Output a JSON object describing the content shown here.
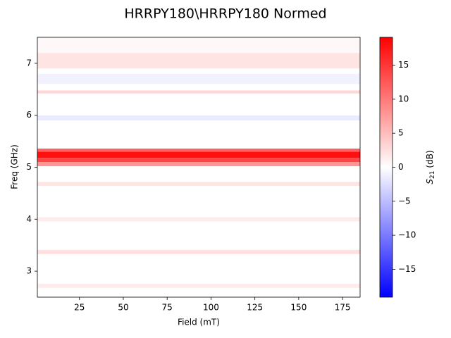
{
  "chart_data": {
    "type": "heatmap",
    "title": "HRRPY180\\HRRPY180 Normed",
    "xlabel": "Field (mT)",
    "ylabel": "Freq (GHz)",
    "xlim": [
      1,
      185
    ],
    "xticks": [
      25,
      50,
      75,
      100,
      125,
      150,
      175
    ],
    "ylim": [
      2.5,
      7.5
    ],
    "yticks": [
      3,
      4,
      5,
      6,
      7
    ],
    "y_bins": [
      2.5,
      2.68,
      2.76,
      3.33,
      3.41,
      3.96,
      4.04,
      4.64,
      4.72,
      5.02,
      5.1,
      5.18,
      5.3,
      5.36,
      5.9,
      6.0,
      6.42,
      6.48,
      6.6,
      6.8,
      6.9,
      7.2,
      7.5
    ],
    "values": [
      0,
      1.5,
      0,
      2.5,
      0,
      1.5,
      0,
      2,
      0,
      8,
      14,
      18,
      12,
      0,
      -1.5,
      0,
      3,
      0,
      -1,
      0,
      2,
      0.5
    ],
    "colormap": "bwr",
    "clim": [
      -19.1,
      19.1
    ],
    "cticks": [
      {
        "value": -15,
        "label": "−15"
      },
      {
        "value": -10,
        "label": "−10"
      },
      {
        "value": -5,
        "label": "−5"
      },
      0,
      5,
      10,
      15
    ],
    "colorbar_label": {
      "symbol": "S",
      "subscript": "21",
      "unit": "(dB)"
    }
  }
}
